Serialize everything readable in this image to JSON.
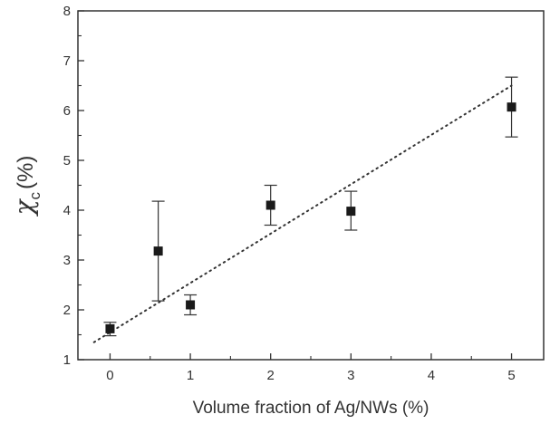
{
  "chart_data": {
    "type": "scatter",
    "xlabel": "Volume fraction of Ag/NWs (%)",
    "ylabel_symbol": "χ",
    "ylabel_subscript": "c",
    "ylabel_unit": "(%)",
    "xlim": [
      -0.4,
      5.4
    ],
    "ylim": [
      1,
      8
    ],
    "x_ticks": [
      0,
      1,
      2,
      3,
      4,
      5
    ],
    "y_ticks": [
      1,
      2,
      3,
      4,
      5,
      6,
      7,
      8
    ],
    "grid": false,
    "legend": "none",
    "series": [
      {
        "marker": "square",
        "color": "#1a1a1a",
        "points": [
          {
            "x": 0,
            "y": 1.62,
            "err_low": 1.48,
            "err_high": 1.75
          },
          {
            "x": 0.6,
            "y": 3.18,
            "err_low": 2.18,
            "err_high": 4.18
          },
          {
            "x": 1,
            "y": 2.1,
            "err_low": 1.9,
            "err_high": 2.3
          },
          {
            "x": 2,
            "y": 4.1,
            "err_low": 3.7,
            "err_high": 4.5
          },
          {
            "x": 3,
            "y": 3.98,
            "err_low": 3.6,
            "err_high": 4.38
          },
          {
            "x": 5,
            "y": 6.07,
            "err_low": 5.47,
            "err_high": 6.67
          }
        ]
      }
    ],
    "fit_line": {
      "style": "dotted",
      "color": "#333333",
      "x": [
        -0.2,
        5
      ],
      "y": [
        1.35,
        6.5
      ]
    }
  }
}
